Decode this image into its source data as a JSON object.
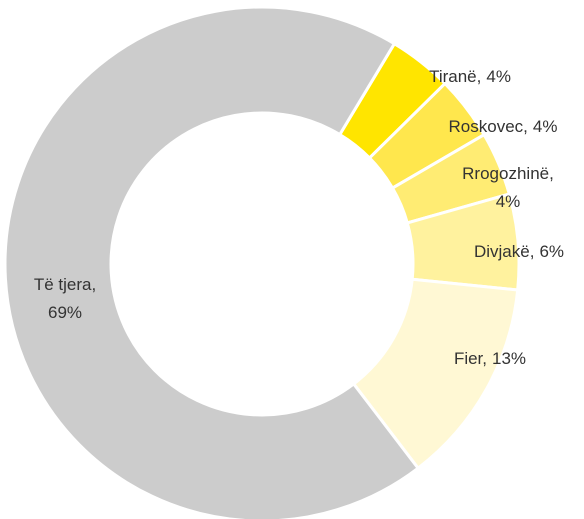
{
  "chart_data": {
    "type": "pie",
    "donut": true,
    "categories": [
      "Tiranë",
      "Roskovec",
      "Rrogozhinë",
      "Divjakë",
      "Fier",
      "Të tjera"
    ],
    "values": [
      4,
      4,
      4,
      6,
      13,
      69
    ],
    "value_labels": [
      "4%",
      "4%",
      "4%",
      "6%",
      "13%",
      "69%"
    ],
    "colors": [
      "#ffe500",
      "#ffe74d",
      "#ffec73",
      "#fff29e",
      "#fff8d4",
      "#cccccc"
    ]
  }
}
